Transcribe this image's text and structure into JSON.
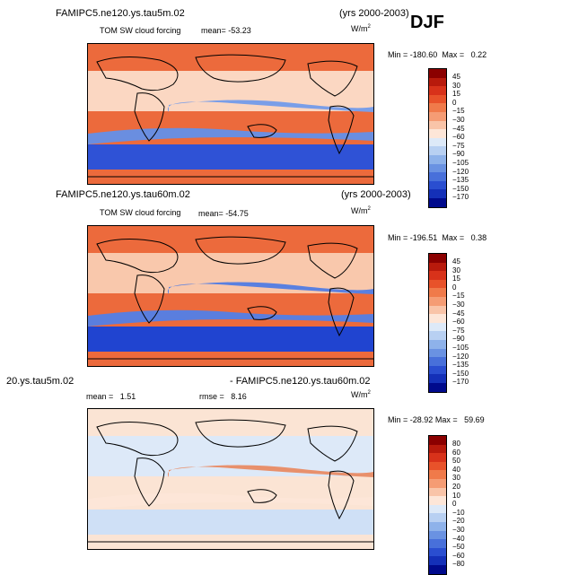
{
  "season": "DJF",
  "panels": [
    {
      "case": "FAMIPC5.ne120.ys.tau5m.02",
      "years": "(yrs 2000-2003)",
      "variable": "TOM SW cloud forcing",
      "mean_label": "mean=",
      "mean": "-53.23",
      "units": "W/m",
      "units_sup": "2",
      "min_label": "Min =",
      "min": "-180.60",
      "max_label": "Max =",
      "max": "0.22",
      "colorbar": {
        "labels": [
          "45",
          "30",
          "15",
          "0",
          "−15",
          "−30",
          "−45",
          "−60",
          "−75",
          "−90",
          "−105",
          "−120",
          "−135",
          "−150",
          "−170"
        ],
        "colors": [
          "#8b0000",
          "#b81a0c",
          "#d8321a",
          "#e8522a",
          "#f07a4a",
          "#f59c74",
          "#f9c4a8",
          "#fde6d8",
          "#dde9f8",
          "#b8d0f2",
          "#8eb2ea",
          "#6a92e2",
          "#4870da",
          "#2a4ed0",
          "#1430b8",
          "#000a8c"
        ]
      },
      "field": {
        "base": "#ec6a3c",
        "trop": "#fbd7c2",
        "itcz": "#7a9ee8",
        "southern": "#2f52d6",
        "south_band": "#6a8ee0"
      }
    },
    {
      "case": "FAMIPC5.ne120.ys.tau60m.02",
      "years": "(yrs 2000-2003)",
      "variable": "TOM SW cloud forcing",
      "mean_label": "mean=",
      "mean": "-54.75",
      "units": "W/m",
      "units_sup": "2",
      "min_label": "Min =",
      "min": "-196.51",
      "max_label": "Max =",
      "max": "0.38",
      "colorbar": {
        "labels": [
          "45",
          "30",
          "15",
          "0",
          "−15",
          "−30",
          "−45",
          "−60",
          "−75",
          "−90",
          "−105",
          "−120",
          "−135",
          "−150",
          "−170"
        ],
        "colors": [
          "#8b0000",
          "#b81a0c",
          "#d8321a",
          "#e8522a",
          "#f07a4a",
          "#f59c74",
          "#f9c4a8",
          "#fde6d8",
          "#dde9f8",
          "#b8d0f2",
          "#8eb2ea",
          "#6a92e2",
          "#4870da",
          "#2a4ed0",
          "#1430b8",
          "#000a8c"
        ]
      },
      "field": {
        "base": "#ec6a3c",
        "trop": "#f9c8ac",
        "itcz": "#5a80e0",
        "southern": "#2044d0",
        "south_band": "#5a7ede"
      }
    },
    {
      "case": "20.ys.tau5m.02",
      "case2": "- FAMIPC5.ne120.ys.tau60m.02",
      "mean_label": "mean =",
      "mean": "1.51",
      "rmse_label": "rmse =",
      "rmse": "8.16",
      "units": "W/m",
      "units_sup": "2",
      "min_label": "Min =",
      "min": "-28.92",
      "max_label": "Max =",
      "max": "59.69",
      "colorbar": {
        "labels": [
          "80",
          "60",
          "50",
          "40",
          "30",
          "20",
          "10",
          "0",
          "−10",
          "−20",
          "−30",
          "−40",
          "−50",
          "−60",
          "−80"
        ],
        "colors": [
          "#8b0000",
          "#b81a0c",
          "#d8321a",
          "#e8522a",
          "#f07a4a",
          "#f59c74",
          "#f9c4a8",
          "#fde6d8",
          "#dde9f8",
          "#b8d0f2",
          "#8eb2ea",
          "#6a92e2",
          "#4870da",
          "#2a4ed0",
          "#1430b8",
          "#000a8c"
        ]
      },
      "field": {
        "base": "#fbe4d4",
        "trop": "#dde9f8",
        "itcz": "#e8906c",
        "southern": "#cfe0f6",
        "south_band": "#fde6d8"
      }
    }
  ]
}
